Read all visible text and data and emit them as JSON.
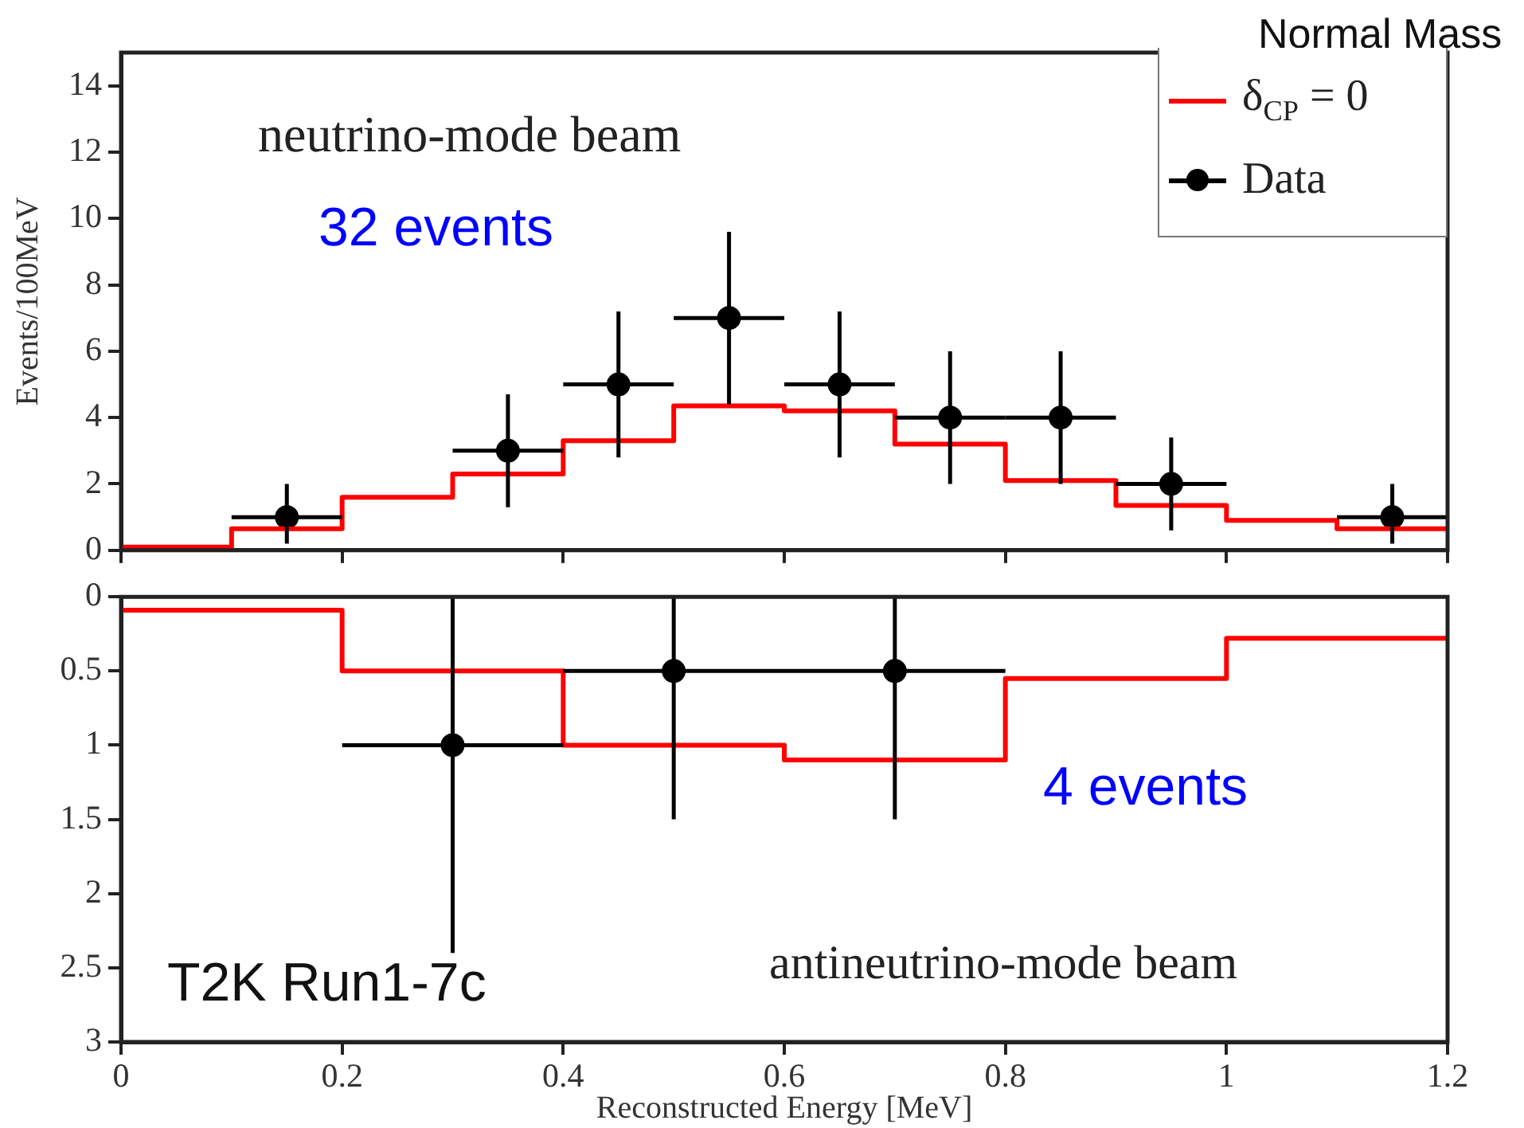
{
  "chart_data": [
    {
      "type": "step",
      "ylabel": "Events/100MeV",
      "annotations": [
        "Normal Mass",
        "neutrino-mode beam",
        "32 events"
      ],
      "xlim": [
        0,
        1.2
      ],
      "xticks": [
        0,
        0.2,
        0.4,
        0.6,
        0.8,
        1,
        1.2
      ],
      "ylim": [
        0,
        15
      ],
      "yticks": [
        0,
        2,
        4,
        6,
        8,
        10,
        12,
        14
      ],
      "tick_labels": "y",
      "grid": false,
      "legend": "top right",
      "series": [
        {
          "name": "δ$_{CP}$ = 0",
          "color": "#ff0000",
          "x": [
            0,
            0.1,
            0.2,
            0.3,
            0.4,
            0.5,
            0.6,
            0.7,
            0.8,
            0.9,
            1.0,
            1.1,
            1.2
          ],
          "values": [
            0.1,
            0.65,
            1.6,
            2.3,
            3.3,
            4.35,
            4.2,
            3.2,
            2.1,
            1.35,
            0.9,
            0.65,
            0.65
          ]
        },
        {
          "type": "scatter",
          "marker": "circle",
          "name": "Data",
          "color": "#000000",
          "x": [
            0.15,
            0.35,
            0.45,
            0.55,
            0.65,
            0.75,
            0.85,
            0.95,
            1.15
          ],
          "values": [
            1,
            3,
            5,
            7,
            5,
            4,
            4,
            2,
            1
          ],
          "errors": [
            [
              0.2,
              2.0
            ],
            [
              1.3,
              4.7
            ],
            [
              2.8,
              7.2
            ],
            [
              4.4,
              9.6
            ],
            [
              2.8,
              7.2
            ],
            [
              2.0,
              6.0
            ],
            [
              2.0,
              6.0
            ],
            [
              0.6,
              3.4
            ],
            [
              0.2,
              2.0
            ]
          ],
          "xerrors": [
            0.05,
            0.05,
            0.05,
            0.05,
            0.05,
            0.05,
            0.05,
            0.05,
            0.05
          ]
        }
      ]
    },
    {
      "type": "step",
      "xlabel": "Reconstructed Energy [MeV]",
      "annotations": [
        "4 events",
        "antineutrino-mode beam",
        "T2K Run1-7c"
      ],
      "xlim": [
        0,
        1.2
      ],
      "xticks": [
        0,
        0.2,
        0.4,
        0.6,
        0.8,
        1,
        1.2
      ],
      "ylim": [
        3,
        0
      ],
      "yticks": [
        0,
        0.5,
        1,
        1.5,
        2,
        2.5,
        3
      ],
      "grid": false,
      "series": [
        {
          "color": "#ff0000",
          "x": [
            0,
            0.2,
            0.4,
            0.6,
            0.8,
            1.0,
            1.2
          ],
          "values": [
            0.09,
            0.5,
            1.0,
            1.1,
            0.55,
            0.28,
            0.28
          ]
        },
        {
          "type": "scatter",
          "marker": "circle",
          "color": "#000000",
          "x": [
            0.3,
            0.5,
            0.7
          ],
          "values": [
            1,
            0.5,
            0.5
          ],
          "errors": [
            [
              0,
              2.4
            ],
            [
              0,
              1.5
            ],
            [
              0,
              1.5
            ]
          ],
          "xerrors": [
            0.1,
            0.1,
            0.1
          ]
        }
      ]
    }
  ]
}
